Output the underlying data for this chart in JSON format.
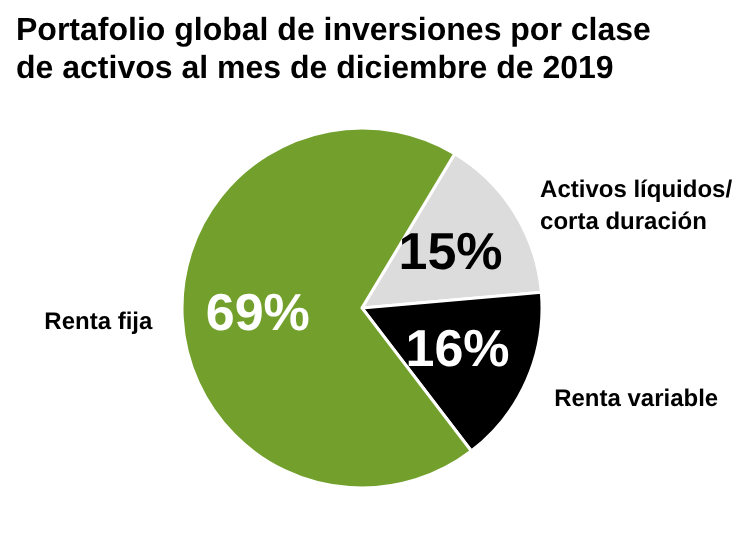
{
  "chart_data": {
    "type": "pie",
    "title": "Portafolio global de inversiones por clase de activos al mes de diciembre de 2019",
    "categories": [
      "Activos líquidos/\ncorta duración",
      "Renta variable",
      "Renta fija"
    ],
    "values": [
      15,
      16,
      69
    ],
    "value_labels": [
      "15%",
      "16%",
      "69%"
    ],
    "colors": [
      "#dcdcdc",
      "#000000",
      "#73a02d"
    ]
  }
}
